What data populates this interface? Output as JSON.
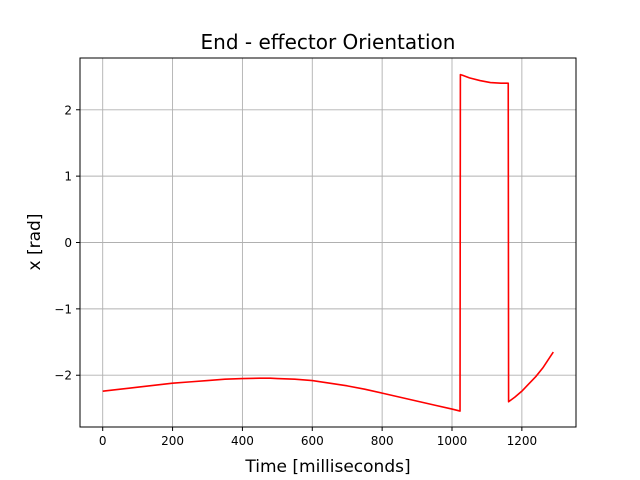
{
  "chart_data": {
    "type": "line",
    "title": "End - effector Orientation",
    "xlabel": "Time [milliseconds]",
    "ylabel": "x [rad]",
    "xlim": [
      -65,
      1355
    ],
    "ylim": [
      -2.78,
      2.78
    ],
    "xticks": [
      0,
      200,
      400,
      600,
      800,
      1000,
      1200
    ],
    "xtick_labels": [
      "0",
      "200",
      "400",
      "600",
      "800",
      "1000",
      "1200"
    ],
    "yticks": [
      -2,
      -1,
      0,
      1,
      2
    ],
    "ytick_labels": [
      "−2",
      "−1",
      "0",
      "1",
      "2"
    ],
    "grid": true,
    "series": [
      {
        "color": "#ff0000",
        "x": [
          0,
          50,
          100,
          150,
          200,
          250,
          300,
          350,
          400,
          450,
          480,
          500,
          550,
          600,
          650,
          700,
          750,
          800,
          850,
          900,
          950,
          1000,
          1023,
          1024,
          1030,
          1050,
          1080,
          1110,
          1140,
          1160,
          1161,
          1162,
          1180,
          1200,
          1220,
          1240,
          1260,
          1280,
          1290
        ],
        "y": [
          -2.24,
          -2.21,
          -2.18,
          -2.15,
          -2.12,
          -2.1,
          -2.08,
          -2.06,
          -2.05,
          -2.045,
          -2.045,
          -2.05,
          -2.06,
          -2.08,
          -2.12,
          -2.16,
          -2.21,
          -2.27,
          -2.33,
          -2.39,
          -2.45,
          -2.51,
          -2.54,
          2.53,
          2.52,
          2.48,
          2.44,
          2.41,
          2.4,
          2.4,
          2.4,
          -2.4,
          -2.33,
          -2.24,
          -2.13,
          -2.02,
          -1.89,
          -1.73,
          -1.65
        ]
      }
    ]
  }
}
